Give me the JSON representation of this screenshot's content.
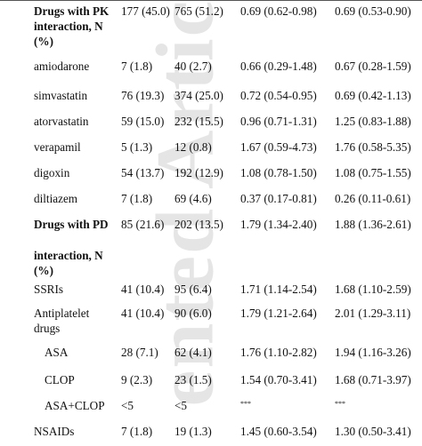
{
  "watermark": "ented Artic",
  "rows": [
    {
      "label": "Drugs with PK interaction, N (%)",
      "bold": true,
      "c1": "177 (45.0)",
      "c2": "765 (51.2)",
      "c3": "0.69 (0.62-0.98)",
      "c4": "0.69 (0.53-0.90)"
    },
    {
      "label": "amiodarone",
      "c1": "7 (1.8)",
      "c2": "40 (2.7)",
      "c3": "0.66 (0.29-1.48)",
      "c4": "0.67 (0.28-1.59)"
    },
    {
      "label": "simvastatin",
      "c1": "76 (19.3)",
      "c2": "374 (25.0)",
      "c3": "0.72 (0.54-0.95)",
      "c4": "0.69 (0.42-1.13)"
    },
    {
      "label": "atorvastatin",
      "c1": "59 (15.0)",
      "c2": "232 (15.5)",
      "c3": "0.96 (0.71-1.31)",
      "c4": "1.25 (0.83-1.88)"
    },
    {
      "label": "verapamil",
      "c1": "5 (1.3)",
      "c2": "12 (0.8)",
      "c3": "1.67 (0.59-4.73)",
      "c4": "1.76 (0.58-5.35)"
    },
    {
      "label": "digoxin",
      "c1": "54 (13.7)",
      "c2": "192 (12.9)",
      "c3": "1.08 (0.78-1.50)",
      "c4": "1.08 (0.75-1.55)"
    },
    {
      "label": "diltiazem",
      "c1": "7 (1.8)",
      "c2": "69 (4.6)",
      "c3": "0.37 (0.17-0.81)",
      "c4": "0.26 (0.11-0.61)"
    },
    {
      "label": "Drugs with PD",
      "bold": true,
      "c1": "85 (21.6)",
      "c2": "202 (13.5)",
      "c3": "1.79 (1.34-2.40)",
      "c4": "1.88 (1.36-2.61)"
    },
    {
      "label": "interaction, N (%)",
      "bold": true,
      "c1": "",
      "c2": "",
      "c3": "",
      "c4": ""
    },
    {
      "label": "SSRIs",
      "c1": "41 (10.4)",
      "c2": "95 (6.4)",
      "c3": "1.71 (1.14-2.54)",
      "c4": "1.68 (1.10-2.59)"
    },
    {
      "label": "Antiplatelet drugs",
      "c1": "41 (10.4)",
      "c2": "90 (6.0)",
      "c3": "1.79 (1.21-2.64)",
      "c4": "2.01 (1.29-3.11)"
    },
    {
      "label": "ASA",
      "sub": true,
      "c1": "28 (7.1)",
      "c2": "62 (4.1)",
      "c3": "1.76 (1.10-2.82)",
      "c4": "1.94 (1.16-3.26)"
    },
    {
      "label": "CLOP",
      "sub": true,
      "c1": "9 (2.3)",
      "c2": "23 (1.5)",
      "c3": "1.54 (0.70-3.41)",
      "c4": "1.68 (0.71-3.97)"
    },
    {
      "label": "ASA+CLOP",
      "sub": true,
      "c1": "<5",
      "c2": "<5",
      "c3": "***",
      "c4": "***"
    },
    {
      "label": "NSAIDs",
      "c1": "7 (1.8)",
      "c2": "19 (1.3)",
      "c3": "1.45 (0.60-3.54)",
      "c4": "1.30 (0.50-3.41)"
    }
  ]
}
